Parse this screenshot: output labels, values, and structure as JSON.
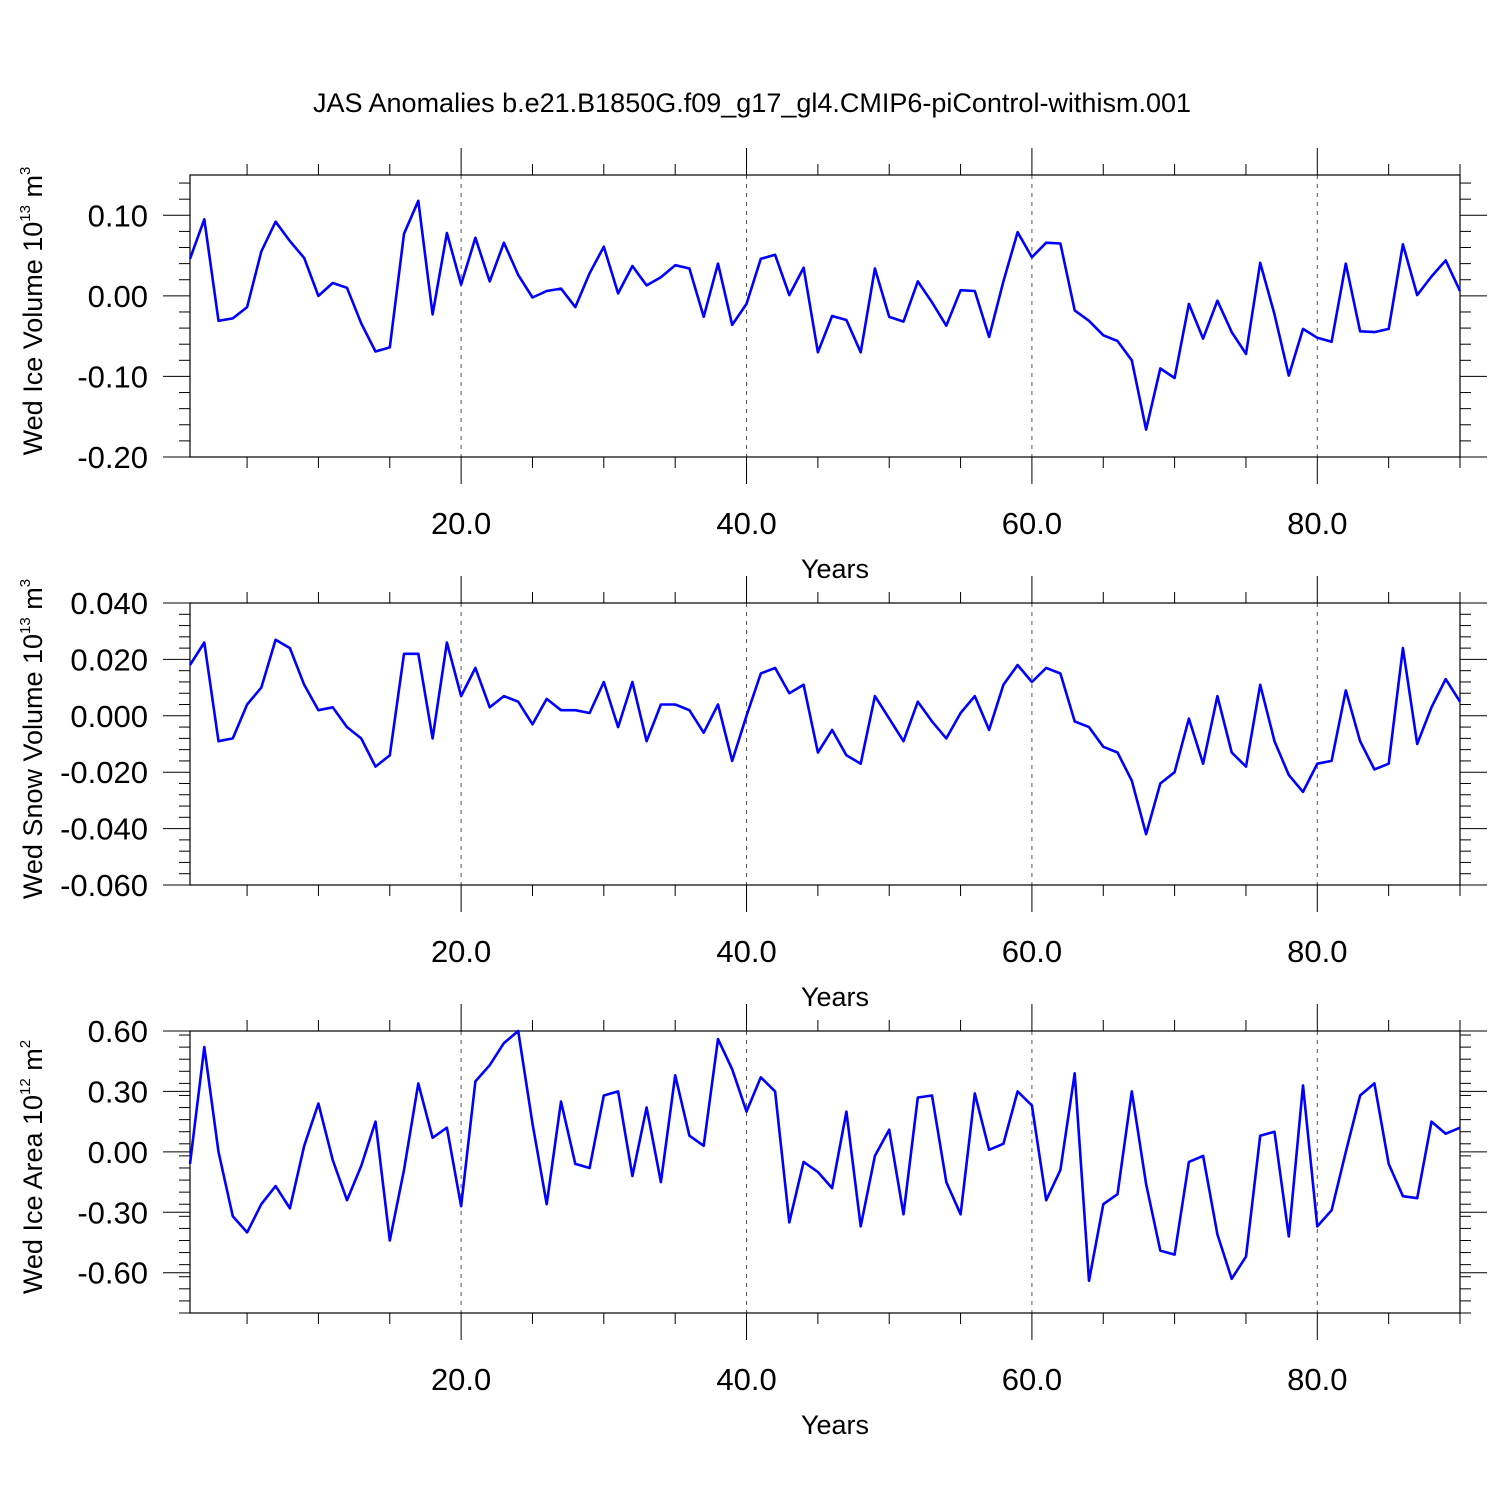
{
  "figure": {
    "title": "JAS Anomalies b.e21.B1850G.f09_g17_gl4.CMIP6-piControl-withism.001"
  },
  "chart_data": [
    {
      "type": "line",
      "title": "",
      "xlabel": "Years",
      "ylabel": "Wed Ice Volume 10",
      "ylabel_exponent": "13",
      "ylabel_unit": "m",
      "ylabel_unit_exponent": "3",
      "xlim": [
        1,
        90
      ],
      "ylim": [
        -0.2,
        0.15
      ],
      "xticks": [
        20,
        40,
        60,
        80
      ],
      "xtick_labels": [
        "20.0",
        "40.0",
        "60.0",
        "80.0"
      ],
      "yticks": [
        -0.2,
        -0.1,
        0.0,
        0.1
      ],
      "ytick_labels": [
        "-0.20",
        "-0.10",
        "0.00",
        "0.10"
      ],
      "grid": "vertical dashed at major x ticks",
      "line_color": "#0000ff",
      "x": [
        1,
        2,
        3,
        4,
        5,
        6,
        7,
        8,
        9,
        10,
        11,
        12,
        13,
        14,
        15,
        16,
        17,
        18,
        19,
        20,
        21,
        22,
        23,
        24,
        25,
        26,
        27,
        28,
        29,
        30,
        31,
        32,
        33,
        34,
        35,
        36,
        37,
        38,
        39,
        40,
        41,
        42,
        43,
        44,
        45,
        46,
        47,
        48,
        49,
        50,
        51,
        52,
        53,
        54,
        55,
        56,
        57,
        58,
        59,
        60,
        61,
        62,
        63,
        64,
        65,
        66,
        67,
        68,
        69,
        70,
        71,
        72,
        73,
        74,
        75,
        76,
        77,
        78,
        79,
        80,
        81,
        82,
        83,
        84,
        85,
        86,
        87,
        88,
        89,
        90
      ],
      "values": [
        0.046,
        0.095,
        -0.031,
        -0.028,
        -0.014,
        0.055,
        0.092,
        0.068,
        0.047,
        0.0,
        0.016,
        0.01,
        -0.034,
        -0.069,
        -0.064,
        0.077,
        0.118,
        -0.023,
        0.078,
        0.014,
        0.072,
        0.018,
        0.066,
        0.026,
        -0.002,
        0.006,
        0.009,
        -0.014,
        0.028,
        0.061,
        0.003,
        0.037,
        0.013,
        0.023,
        0.038,
        0.034,
        -0.026,
        0.04,
        -0.036,
        -0.01,
        0.046,
        0.051,
        0.001,
        0.035,
        -0.07,
        -0.025,
        -0.03,
        -0.07,
        0.034,
        -0.026,
        -0.032,
        0.018,
        -0.008,
        -0.037,
        0.007,
        0.006,
        -0.051,
        0.018,
        0.079,
        0.048,
        0.066,
        0.065,
        -0.018,
        -0.031,
        -0.049,
        -0.056,
        -0.08,
        -0.166,
        -0.09,
        -0.102,
        -0.01,
        -0.053,
        -0.006,
        -0.045,
        -0.072,
        0.041,
        -0.023,
        -0.099,
        -0.041,
        -0.052,
        -0.057,
        0.04,
        -0.044,
        -0.045,
        -0.041,
        0.064,
        0.001,
        0.024,
        0.044,
        0.006
      ]
    },
    {
      "type": "line",
      "title": "",
      "xlabel": "Years",
      "ylabel": "Wed Snow Volume 10",
      "ylabel_exponent": "13",
      "ylabel_unit": "m",
      "ylabel_unit_exponent": "3",
      "xlim": [
        1,
        90
      ],
      "ylim": [
        -0.06,
        0.04
      ],
      "xticks": [
        20,
        40,
        60,
        80
      ],
      "xtick_labels": [
        "20.0",
        "40.0",
        "60.0",
        "80.0"
      ],
      "yticks": [
        -0.06,
        -0.04,
        -0.02,
        0.0,
        0.02,
        0.04
      ],
      "ytick_labels": [
        "-0.060",
        "-0.040",
        "-0.020",
        "0.000",
        "0.020",
        "0.040"
      ],
      "grid": "vertical dashed at major x ticks",
      "line_color": "#0000ff",
      "x": [
        1,
        2,
        3,
        4,
        5,
        6,
        7,
        8,
        9,
        10,
        11,
        12,
        13,
        14,
        15,
        16,
        17,
        18,
        19,
        20,
        21,
        22,
        23,
        24,
        25,
        26,
        27,
        28,
        29,
        30,
        31,
        32,
        33,
        34,
        35,
        36,
        37,
        38,
        39,
        40,
        41,
        42,
        43,
        44,
        45,
        46,
        47,
        48,
        49,
        50,
        51,
        52,
        53,
        54,
        55,
        56,
        57,
        58,
        59,
        60,
        61,
        62,
        63,
        64,
        65,
        66,
        67,
        68,
        69,
        70,
        71,
        72,
        73,
        74,
        75,
        76,
        77,
        78,
        79,
        80,
        81,
        82,
        83,
        84,
        85,
        86,
        87,
        88,
        89,
        90
      ],
      "values": [
        0.018,
        0.026,
        -0.009,
        -0.008,
        0.004,
        0.01,
        0.027,
        0.024,
        0.011,
        0.002,
        0.003,
        -0.004,
        -0.008,
        -0.018,
        -0.014,
        0.022,
        0.022,
        -0.008,
        0.026,
        0.007,
        0.017,
        0.003,
        0.007,
        0.005,
        -0.003,
        0.006,
        0.002,
        0.002,
        0.001,
        0.012,
        -0.004,
        0.012,
        -0.009,
        0.004,
        0.004,
        0.002,
        -0.006,
        0.004,
        -0.016,
        -0.0,
        0.015,
        0.017,
        0.008,
        0.011,
        -0.013,
        -0.005,
        -0.014,
        -0.017,
        0.007,
        -0.001,
        -0.009,
        0.005,
        -0.002,
        -0.008,
        0.001,
        0.007,
        -0.005,
        0.011,
        0.018,
        0.012,
        0.017,
        0.015,
        -0.002,
        -0.004,
        -0.011,
        -0.013,
        -0.023,
        -0.042,
        -0.024,
        -0.02,
        -0.001,
        -0.017,
        0.007,
        -0.013,
        -0.018,
        0.011,
        -0.009,
        -0.021,
        -0.027,
        -0.017,
        -0.016,
        0.009,
        -0.009,
        -0.019,
        -0.017,
        0.024,
        -0.01,
        0.003,
        0.013,
        0.005
      ]
    },
    {
      "type": "line",
      "title": "",
      "xlabel": "Years",
      "ylabel": "Wed Ice Area 10",
      "ylabel_exponent": "12",
      "ylabel_unit": "m",
      "ylabel_unit_exponent": "2",
      "xlim": [
        1,
        90
      ],
      "ylim": [
        -0.8,
        0.6
      ],
      "xticks": [
        20,
        40,
        60,
        80
      ],
      "xtick_labels": [
        "20.0",
        "40.0",
        "60.0",
        "80.0"
      ],
      "yticks": [
        -0.6,
        -0.3,
        0.0,
        0.3,
        0.6
      ],
      "ytick_labels": [
        "-0.60",
        "-0.30",
        "0.00",
        "0.30",
        "0.60"
      ],
      "grid": "vertical dashed at major x ticks",
      "line_color": "#0000ff",
      "x": [
        1,
        2,
        3,
        4,
        5,
        6,
        7,
        8,
        9,
        10,
        11,
        12,
        13,
        14,
        15,
        16,
        17,
        18,
        19,
        20,
        21,
        22,
        23,
        24,
        25,
        26,
        27,
        28,
        29,
        30,
        31,
        32,
        33,
        34,
        35,
        36,
        37,
        38,
        39,
        40,
        41,
        42,
        43,
        44,
        45,
        46,
        47,
        48,
        49,
        50,
        51,
        52,
        53,
        54,
        55,
        56,
        57,
        58,
        59,
        60,
        61,
        62,
        63,
        64,
        65,
        66,
        67,
        68,
        69,
        70,
        71,
        72,
        73,
        74,
        75,
        76,
        77,
        78,
        79,
        80,
        81,
        82,
        83,
        84,
        85,
        86,
        87,
        88,
        89,
        90
      ],
      "values": [
        -0.06,
        0.52,
        0.0,
        -0.32,
        -0.4,
        -0.26,
        -0.17,
        -0.28,
        0.03,
        0.24,
        -0.04,
        -0.24,
        -0.07,
        0.15,
        -0.44,
        -0.09,
        0.34,
        0.07,
        0.12,
        -0.27,
        0.35,
        0.43,
        0.54,
        0.6,
        0.14,
        -0.26,
        0.25,
        -0.06,
        -0.08,
        0.28,
        0.3,
        -0.12,
        0.22,
        -0.15,
        0.38,
        0.08,
        0.03,
        0.56,
        0.41,
        0.2,
        0.37,
        0.3,
        -0.35,
        -0.05,
        -0.1,
        -0.18,
        0.2,
        -0.37,
        -0.02,
        0.11,
        -0.31,
        0.27,
        0.28,
        -0.15,
        -0.31,
        0.29,
        0.01,
        0.04,
        0.3,
        0.23,
        -0.24,
        -0.09,
        0.39,
        -0.64,
        -0.26,
        -0.21,
        0.3,
        -0.16,
        -0.49,
        -0.51,
        -0.05,
        -0.02,
        -0.41,
        -0.63,
        -0.52,
        0.08,
        0.1,
        -0.42,
        0.33,
        -0.37,
        -0.29,
        0.0,
        0.28,
        0.34,
        -0.06,
        -0.22,
        -0.23,
        0.15,
        0.09,
        0.12
      ]
    }
  ]
}
